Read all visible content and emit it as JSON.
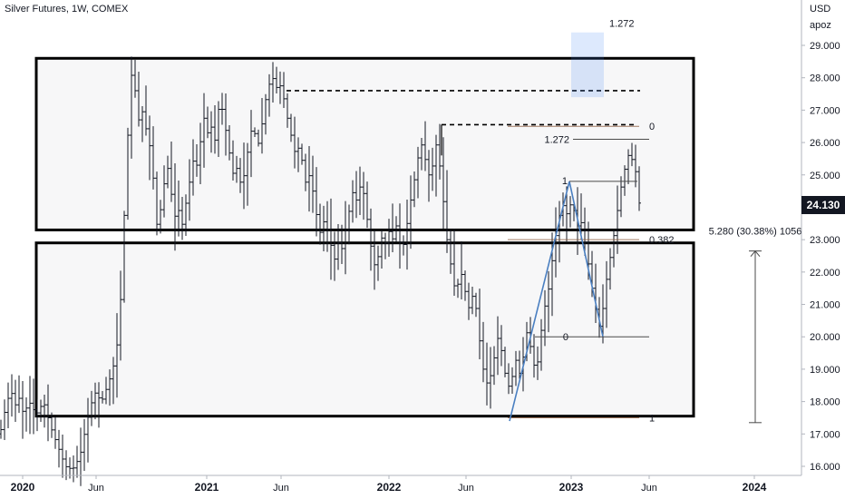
{
  "chart_data": {
    "type": "bar",
    "title": "Silver Futures, 1W, COMEX",
    "currency": "USD",
    "scale_mode": "apoz",
    "current_price": "24.130",
    "ylim": [
      15.8,
      29.6
    ],
    "y_ticks": [
      "16.000",
      "17.000",
      "18.000",
      "19.000",
      "20.000",
      "21.000",
      "22.000",
      "23.000",
      "24.000",
      "25.000",
      "26.000",
      "27.000",
      "28.000",
      "29.000"
    ],
    "x_ticks": [
      {
        "label": "2020",
        "bold": true
      },
      {
        "label": "Jun",
        "bold": false
      },
      {
        "label": "2021",
        "bold": true
      },
      {
        "label": "Jun",
        "bold": false
      },
      {
        "label": "2022",
        "bold": true
      },
      {
        "label": "Jun",
        "bold": false
      },
      {
        "label": "2023",
        "bold": true
      },
      {
        "label": "Jun",
        "bold": false
      },
      {
        "label": "2024",
        "bold": true
      }
    ],
    "price_path": [
      [
        0,
        17.0
      ],
      [
        6,
        17.8
      ],
      [
        12,
        18.4
      ],
      [
        16,
        17.8
      ],
      [
        20,
        18.2
      ],
      [
        26,
        17.6
      ],
      [
        32,
        18.0
      ],
      [
        40,
        17.6
      ],
      [
        48,
        18.0
      ],
      [
        56,
        17.2
      ],
      [
        64,
        16.6
      ],
      [
        72,
        16.0
      ],
      [
        80,
        15.9
      ],
      [
        88,
        16.3
      ],
      [
        96,
        17.4
      ],
      [
        104,
        18.3
      ],
      [
        112,
        18.0
      ],
      [
        120,
        18.6
      ],
      [
        128,
        19.4
      ],
      [
        134,
        21.5
      ],
      [
        138,
        24.5
      ],
      [
        142,
        26.8
      ],
      [
        146,
        28.5
      ],
      [
        150,
        27.3
      ],
      [
        154,
        26.5
      ],
      [
        158,
        27.1
      ],
      [
        162,
        26.2
      ],
      [
        166,
        25.8
      ],
      [
        170,
        24.6
      ],
      [
        174,
        23.1
      ],
      [
        178,
        24.2
      ],
      [
        182,
        24.9
      ],
      [
        186,
        25.3
      ],
      [
        190,
        24.1
      ],
      [
        194,
        23.6
      ],
      [
        198,
        24.0
      ],
      [
        202,
        23.3
      ],
      [
        206,
        24.4
      ],
      [
        210,
        24.9
      ],
      [
        214,
        25.6
      ],
      [
        218,
        25.2
      ],
      [
        222,
        26.3
      ],
      [
        226,
        26.9
      ],
      [
        230,
        26.1
      ],
      [
        234,
        26.6
      ],
      [
        238,
        25.9
      ],
      [
        242,
        27.4
      ],
      [
        246,
        26.9
      ],
      [
        250,
        26.2
      ],
      [
        254,
        25.5
      ],
      [
        258,
        24.9
      ],
      [
        262,
        25.3
      ],
      [
        266,
        24.6
      ],
      [
        270,
        25.1
      ],
      [
        274,
        25.9
      ],
      [
        278,
        26.5
      ],
      [
        282,
        26.2
      ],
      [
        286,
        25.9
      ],
      [
        290,
        26.8
      ],
      [
        294,
        27.5
      ],
      [
        298,
        27.9
      ],
      [
        302,
        28.0
      ],
      [
        306,
        27.6
      ],
      [
        310,
        27.8
      ],
      [
        314,
        27.2
      ],
      [
        318,
        26.6
      ],
      [
        322,
        26.1
      ],
      [
        326,
        25.6
      ],
      [
        330,
        25.9
      ],
      [
        334,
        25.3
      ],
      [
        338,
        24.6
      ],
      [
        342,
        25.1
      ],
      [
        346,
        24.3
      ],
      [
        350,
        23.6
      ],
      [
        354,
        23.1
      ],
      [
        358,
        23.7
      ],
      [
        362,
        23.2
      ],
      [
        366,
        22.7
      ],
      [
        370,
        22.3
      ],
      [
        374,
        23.1
      ],
      [
        378,
        22.6
      ],
      [
        382,
        23.5
      ],
      [
        386,
        24.0
      ],
      [
        390,
        24.6
      ],
      [
        394,
        24.1
      ],
      [
        398,
        24.8
      ],
      [
        402,
        24.3
      ],
      [
        406,
        23.4
      ],
      [
        410,
        22.6
      ],
      [
        414,
        22.1
      ],
      [
        418,
        22.6
      ],
      [
        422,
        23.2
      ],
      [
        426,
        22.8
      ],
      [
        430,
        23.4
      ],
      [
        434,
        22.9
      ],
      [
        438,
        23.6
      ],
      [
        442,
        22.7
      ],
      [
        446,
        22.9
      ],
      [
        450,
        23.7
      ],
      [
        454,
        24.4
      ],
      [
        458,
        25.0
      ],
      [
        462,
        25.7
      ],
      [
        466,
        26.0
      ],
      [
        470,
        25.3
      ],
      [
        474,
        24.9
      ],
      [
        478,
        25.4
      ],
      [
        482,
        26.1
      ],
      [
        486,
        25.0
      ],
      [
        490,
        23.9
      ],
      [
        494,
        22.7
      ],
      [
        498,
        22.1
      ],
      [
        502,
        21.4
      ],
      [
        506,
        21.7
      ],
      [
        510,
        22.0
      ],
      [
        514,
        21.2
      ],
      [
        518,
        20.8
      ],
      [
        522,
        21.4
      ],
      [
        526,
        20.7
      ],
      [
        530,
        19.6
      ],
      [
        534,
        18.8
      ],
      [
        538,
        18.5
      ],
      [
        542,
        18.9
      ],
      [
        546,
        19.5
      ],
      [
        550,
        20.1
      ],
      [
        554,
        19.4
      ],
      [
        558,
        18.7
      ],
      [
        562,
        18.4
      ],
      [
        566,
        18.9
      ],
      [
        570,
        19.4
      ],
      [
        574,
        18.7
      ],
      [
        578,
        19.6
      ],
      [
        582,
        20.3
      ],
      [
        586,
        19.5
      ],
      [
        590,
        19.0
      ],
      [
        594,
        19.3
      ],
      [
        598,
        20.5
      ],
      [
        602,
        21.1
      ],
      [
        606,
        21.6
      ],
      [
        610,
        22.6
      ],
      [
        614,
        23.3
      ],
      [
        618,
        23.9
      ],
      [
        622,
        24.1
      ],
      [
        626,
        23.7
      ],
      [
        630,
        24.2
      ],
      [
        634,
        23.8
      ],
      [
        638,
        23.3
      ],
      [
        642,
        23.6
      ],
      [
        646,
        22.7
      ],
      [
        650,
        22.1
      ],
      [
        654,
        21.3
      ],
      [
        658,
        20.7
      ],
      [
        662,
        20.2
      ],
      [
        666,
        21.1
      ],
      [
        670,
        22.0
      ],
      [
        674,
        22.6
      ],
      [
        678,
        23.3
      ],
      [
        682,
        24.1
      ],
      [
        686,
        24.8
      ],
      [
        690,
        25.3
      ],
      [
        694,
        25.7
      ],
      [
        698,
        25.4
      ],
      [
        702,
        25.0
      ],
      [
        705,
        24.13
      ]
    ],
    "boxes": [
      {
        "name": "upper-range",
        "x0": 40,
        "x1": 765,
        "y_top": 28.6,
        "y_bottom": 23.3
      },
      {
        "name": "lower-range",
        "x0": 40,
        "x1": 765,
        "y_top": 22.9,
        "y_bottom": 17.55
      }
    ],
    "dashed_levels": [
      {
        "name": "resistance-1",
        "x0": 316,
        "x1": 706,
        "y": 27.6
      },
      {
        "name": "resistance-2",
        "x0": 487,
        "x1": 700,
        "y": 26.55
      }
    ],
    "fib_levels": [
      {
        "label": "0",
        "y": 26.5,
        "x0": 560,
        "x1": 705,
        "color": "#8c5a3c"
      },
      {
        "label": "0.382",
        "y": 23.0,
        "x0": 560,
        "x1": 705,
        "color": "#8c5a3c"
      },
      {
        "label": "1",
        "y": 17.5,
        "x0": 560,
        "x1": 705,
        "color": "#8c5a3c"
      }
    ],
    "extension": {
      "points": [
        [
          562,
          17.4
        ],
        [
          628,
          24.8
        ],
        [
          665,
          20.0
        ]
      ],
      "levels": [
        {
          "label": "1.272",
          "y": 26.1,
          "x0": 632,
          "x1": 716
        },
        {
          "label": "1",
          "y": 24.8,
          "x0": 628,
          "x1": 703
        },
        {
          "label": "0",
          "y": 20.0,
          "x0": 590,
          "x1": 716
        }
      ]
    },
    "target_box": {
      "label": "1.272",
      "x0": 630,
      "x1": 666,
      "y_top": 29.4,
      "y_bottom": 27.4
    },
    "measure": {
      "label": "5.280 (30.38%) 1056",
      "x": 833,
      "y_top": 22.65,
      "y_bottom": 17.35
    }
  }
}
